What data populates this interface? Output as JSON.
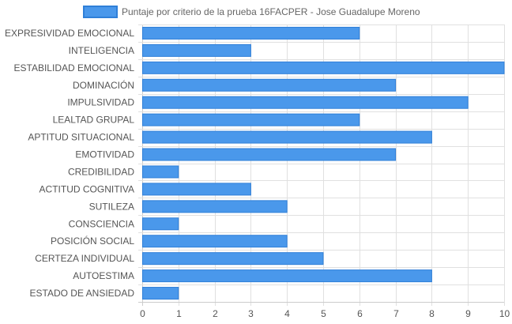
{
  "chart_data": {
    "type": "bar",
    "orientation": "horizontal",
    "title": "",
    "xlabel": "",
    "ylabel": "",
    "xlim": [
      0,
      10
    ],
    "x_ticks": [
      "0",
      "1",
      "2",
      "3",
      "4",
      "5",
      "6",
      "7",
      "8",
      "9",
      "10"
    ],
    "grid": true,
    "legend_position": "top",
    "categories": [
      "EXPRESIVIDAD EMOCIONAL",
      "INTELIGENCIA",
      "ESTABILIDAD EMOCIONAL",
      "DOMINACIÓN",
      "IMPULSIVIDAD",
      "LEALTAD GRUPAL",
      "APTITUD SITUACIONAL",
      "EMOTIVIDAD",
      "CREDIBILIDAD",
      "ACTITUD COGNITIVA",
      "SUTILEZA",
      "CONSCIENCIA",
      "POSICIÓN SOCIAL",
      "CERTEZA INDIVIDUAL",
      "AUTOESTIMA",
      "ESTADO DE ANSIEDAD"
    ],
    "series": [
      {
        "name": "Puntaje por criterio de la prueba 16FACPER - Jose Guadalupe Moreno",
        "values": [
          6,
          3,
          10,
          7,
          9,
          6,
          8,
          7,
          1,
          3,
          4,
          1,
          4,
          5,
          8,
          1
        ],
        "color": "#4a98eb",
        "border_color": "#2f7fd8"
      }
    ],
    "grid_color": "#e0e0e0",
    "axis_color": "#cccccc"
  }
}
